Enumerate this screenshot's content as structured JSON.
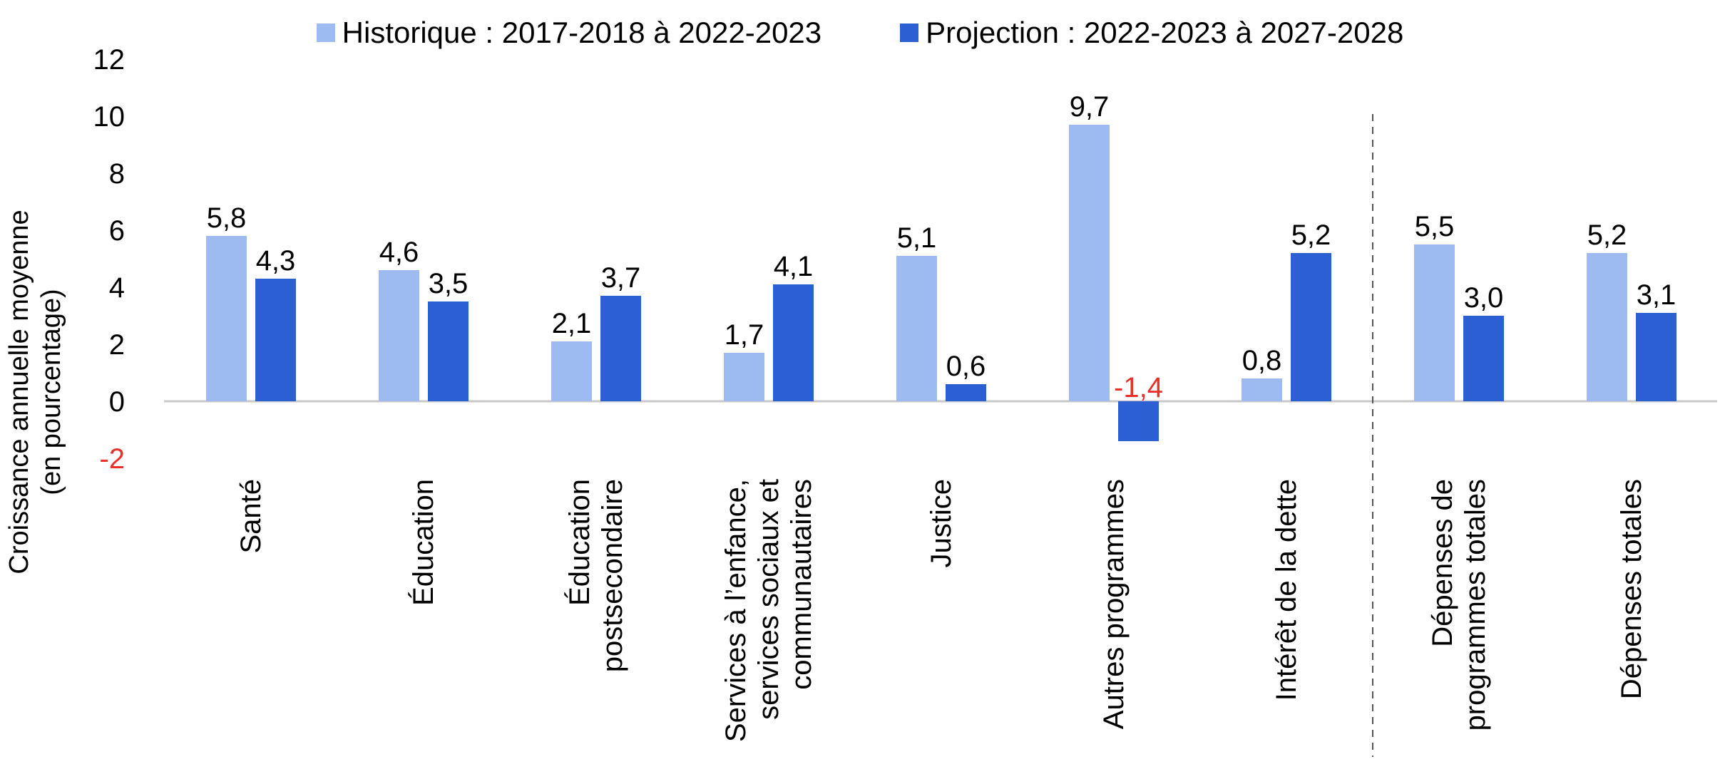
{
  "chart_data": {
    "type": "bar",
    "categories": [
      [
        "Santé"
      ],
      [
        "Éducation"
      ],
      [
        "Éducation",
        "postsecondaire"
      ],
      [
        "Services à l’enfance,",
        "services sociaux et",
        "communautaires"
      ],
      [
        "Justice"
      ],
      [
        "Autres programmes"
      ],
      [
        "Intérêt de la dette"
      ],
      [
        "Dépenses de",
        "programmes totales"
      ],
      [
        "Dépenses totales"
      ]
    ],
    "series": [
      {
        "name": "Historique : 2017-2018 à 2022-2023",
        "values": [
          5.8,
          4.6,
          2.1,
          1.7,
          5.1,
          9.7,
          0.8,
          5.5,
          5.2
        ],
        "labels": [
          "5,8",
          "4,6",
          "2,1",
          "1,7",
          "5,1",
          "9,7",
          "0,8",
          "5,5",
          "5,2"
        ]
      },
      {
        "name": "Projection : 2022-2023 à 2027-2028",
        "values": [
          4.3,
          3.5,
          3.7,
          4.1,
          0.6,
          -1.4,
          5.2,
          3.0,
          3.1
        ],
        "labels": [
          "4,3",
          "3,5",
          "3,7",
          "4,1",
          "0,6",
          "-1,4",
          "5,2",
          "3,0",
          "3,1"
        ]
      }
    ],
    "ylabel": [
      "Croissance annuelle moyenne",
      "(en pourcentage)"
    ],
    "ylim": [
      -2,
      12
    ],
    "yticks": [
      -2,
      0,
      2,
      4,
      6,
      8,
      10,
      12
    ],
    "grid": false,
    "legend_position": "top",
    "separator_after_category": 6
  },
  "colors": {
    "historique": "#9dbaf1",
    "projection": "#2b5fd3",
    "negative": "#e8312a",
    "axis": "#c8c8c8",
    "separator": "#555555"
  }
}
